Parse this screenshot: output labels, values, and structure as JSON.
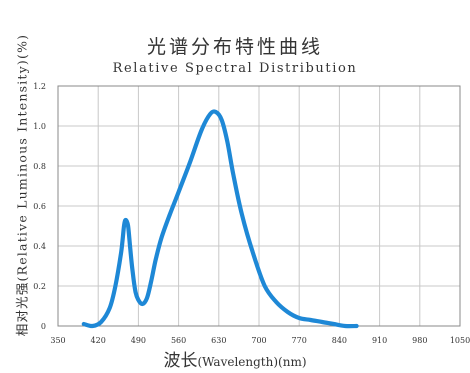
{
  "title_cn": "光谱分布特性曲线",
  "title_en": "Relative Spectral Distribution",
  "ylabel": "相对光强(Relative Luminous Intensity)(%)",
  "xlabel_main": "波长",
  "xlabel_sub": "(Wavelength)",
  "xlabel_unit": "(nm)",
  "colors": {
    "curve": "#1e88d6",
    "grid": "#c8c8c8",
    "frame": "#888888"
  },
  "chart_data": {
    "type": "line",
    "title": "光谱分布特性曲线 / Relative Spectral Distribution",
    "xlabel": "波长(Wavelength)(nm)",
    "ylabel": "相对光强(Relative Luminous Intensity)(%)",
    "xlim": [
      350,
      1050
    ],
    "ylim": [
      0,
      1.2
    ],
    "x_ticks": [
      "350",
      "420",
      "490",
      "560",
      "630",
      "700",
      "770",
      "840",
      "910",
      "980",
      "1050"
    ],
    "y_ticks": [
      "0",
      "0.2",
      "0.4",
      "0.6",
      "0.8",
      "1.0",
      "1.2"
    ],
    "grid": true,
    "series": [
      {
        "x": [
          395,
          410,
          425,
          440,
          450,
          460,
          465,
          468,
          472,
          476,
          480,
          485,
          490,
          497,
          505,
          512,
          520,
          530,
          545,
          560,
          580,
          600,
          615,
          625,
          635,
          645,
          655,
          670,
          690,
          710,
          730,
          750,
          770,
          790,
          810,
          830,
          850,
          870
        ],
        "y": [
          0.01,
          0.0,
          0.02,
          0.09,
          0.2,
          0.37,
          0.5,
          0.53,
          0.5,
          0.38,
          0.27,
          0.17,
          0.13,
          0.11,
          0.14,
          0.22,
          0.33,
          0.44,
          0.56,
          0.67,
          0.82,
          0.98,
          1.06,
          1.07,
          1.03,
          0.92,
          0.76,
          0.56,
          0.36,
          0.2,
          0.12,
          0.07,
          0.04,
          0.03,
          0.02,
          0.01,
          0.0,
          0.0
        ]
      }
    ]
  }
}
